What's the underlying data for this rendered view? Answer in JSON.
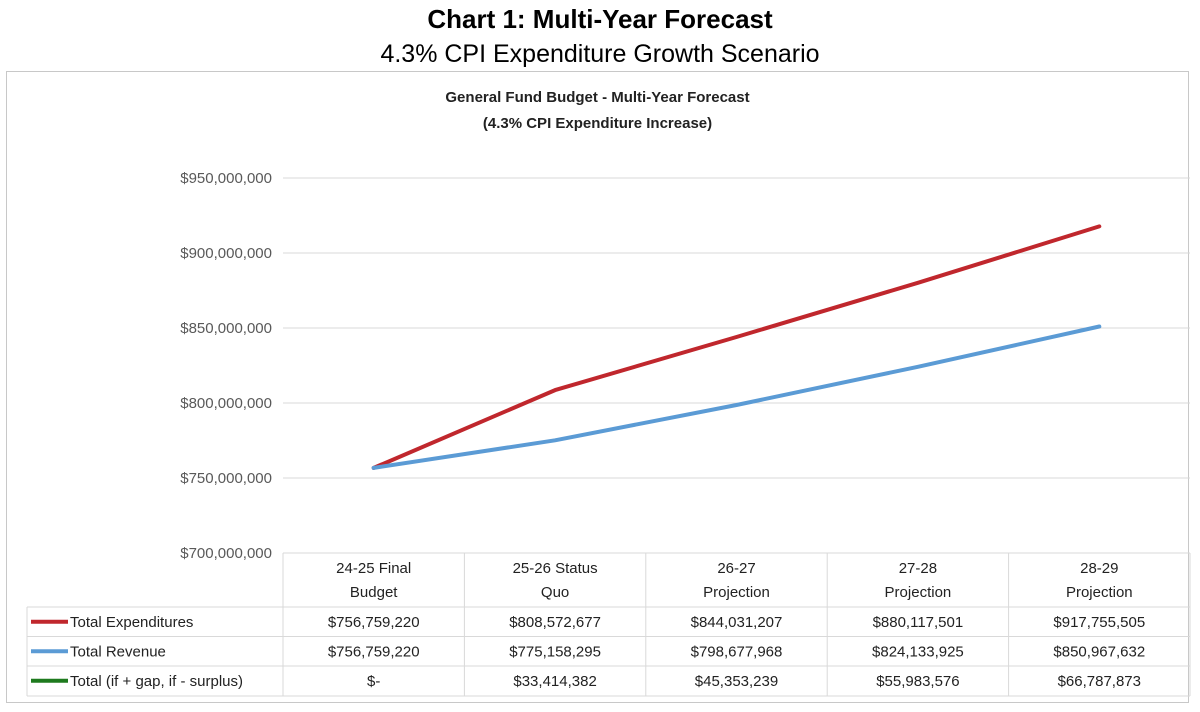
{
  "page": {
    "title": "Chart 1: Multi-Year Forecast",
    "subtitle": "4.3% CPI Expenditure Growth Scenario"
  },
  "chart_data": {
    "type": "line",
    "title": "General Fund Budget - Multi-Year Forecast",
    "subtitle": "(4.3% CPI  Expenditure Increase)",
    "categories": [
      [
        "24-25 Final",
        "Budget"
      ],
      [
        "25-26 Status",
        "Quo"
      ],
      [
        "26-27",
        "Projection"
      ],
      [
        "27-28",
        "Projection"
      ],
      [
        "28-29",
        "Projection"
      ]
    ],
    "ylim": [
      700000000,
      950000000
    ],
    "yticks": [
      700000000,
      750000000,
      800000000,
      850000000,
      900000000,
      950000000
    ],
    "ytick_labels": [
      "$700,000,000",
      "$750,000,000",
      "$800,000,000",
      "$850,000,000",
      "$900,000,000",
      "$950,000,000"
    ],
    "grid": true,
    "legend": "data-table",
    "series": [
      {
        "name": "Total Expenditures",
        "color": "#c0272d",
        "plotted": true,
        "values": [
          756759220,
          808572677,
          844031207,
          880117501,
          917755505
        ],
        "labels": [
          "$756,759,220",
          "$808,572,677",
          "$844,031,207",
          "$880,117,501",
          "$917,755,505"
        ]
      },
      {
        "name": "Total Revenue",
        "color": "#5b9bd5",
        "plotted": true,
        "values": [
          756759220,
          775158295,
          798677968,
          824133925,
          850967632
        ],
        "labels": [
          "$756,759,220",
          "$775,158,295",
          "$798,677,968",
          "$824,133,925",
          "$850,967,632"
        ]
      },
      {
        "name": "Total (if + gap, if - surplus)",
        "color": "#1e7a1e",
        "plotted": false,
        "values": [
          0,
          33414382,
          45353239,
          55983576,
          66787873
        ],
        "labels": [
          "$-",
          "$33,414,382",
          "$45,353,239",
          "$55,983,576",
          "$66,787,873"
        ]
      }
    ]
  }
}
